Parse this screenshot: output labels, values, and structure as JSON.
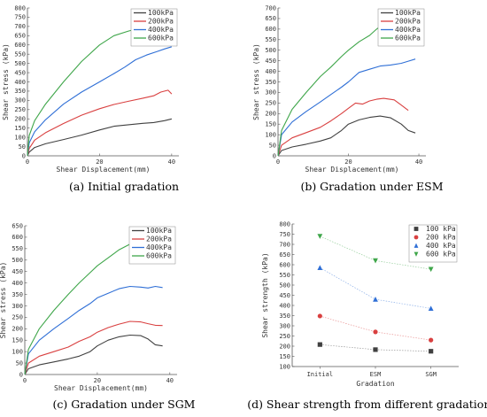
{
  "chart_data": [
    {
      "type": "line",
      "caption": "(a)  Initial gradation",
      "xlabel": "Shear Displacement(mm)",
      "ylabel": "Shear stress (kPa)",
      "xlim": [
        0,
        42
      ],
      "ylim": [
        0,
        800
      ],
      "xticks": [
        0,
        20,
        40
      ],
      "yticks": [
        0,
        50,
        100,
        150,
        200,
        250,
        300,
        350,
        400,
        450,
        500,
        550,
        600,
        650,
        700,
        750,
        800
      ],
      "legend_position": "top-right",
      "series": [
        {
          "name": "100kPa",
          "color": "#404040",
          "points": [
            [
              0,
              0
            ],
            [
              0.5,
              20
            ],
            [
              2,
              45
            ],
            [
              5,
              65
            ],
            [
              10,
              88
            ],
            [
              15,
              112
            ],
            [
              20,
              140
            ],
            [
              24,
              160
            ],
            [
              28,
              168
            ],
            [
              32,
              176
            ],
            [
              35,
              180
            ],
            [
              38,
              190
            ],
            [
              40,
              200
            ]
          ]
        },
        {
          "name": "200kPa",
          "color": "#d94040",
          "points": [
            [
              0,
              0
            ],
            [
              0.5,
              40
            ],
            [
              2,
              85
            ],
            [
              5,
              125
            ],
            [
              10,
              175
            ],
            [
              15,
              220
            ],
            [
              20,
              255
            ],
            [
              24,
              278
            ],
            [
              28,
              295
            ],
            [
              32,
              312
            ],
            [
              35,
              325
            ],
            [
              37,
              345
            ],
            [
              39,
              355
            ],
            [
              40,
              335
            ]
          ]
        },
        {
          "name": "400kPa",
          "color": "#2f6fd6",
          "points": [
            [
              0,
              0
            ],
            [
              0.5,
              70
            ],
            [
              2,
              130
            ],
            [
              5,
              195
            ],
            [
              10,
              280
            ],
            [
              15,
              345
            ],
            [
              20,
              400
            ],
            [
              24,
              445
            ],
            [
              27,
              480
            ],
            [
              30,
              520
            ],
            [
              33,
              545
            ],
            [
              36,
              565
            ],
            [
              38,
              578
            ],
            [
              40,
              590
            ]
          ]
        },
        {
          "name": "600kPa",
          "color": "#3fa64a",
          "points": [
            [
              0,
              0
            ],
            [
              0.5,
              110
            ],
            [
              2,
              190
            ],
            [
              5,
              280
            ],
            [
              10,
              400
            ],
            [
              15,
              510
            ],
            [
              20,
              600
            ],
            [
              24,
              650
            ],
            [
              28,
              675
            ],
            [
              31,
              690
            ],
            [
              34,
              720
            ],
            [
              36,
              740
            ],
            [
              38,
              750
            ],
            [
              40,
              765
            ]
          ]
        }
      ]
    },
    {
      "type": "line",
      "caption": "(b)  Gradation under ESM",
      "xlabel": "Shear Displacement(mm)",
      "ylabel": "Shear stress (kPa)",
      "xlim": [
        0,
        42
      ],
      "ylim": [
        0,
        700
      ],
      "xticks": [
        0,
        20,
        40
      ],
      "yticks": [
        0,
        50,
        100,
        150,
        200,
        250,
        300,
        350,
        400,
        450,
        500,
        550,
        600,
        650,
        700
      ],
      "legend_position": "top-right",
      "series": [
        {
          "name": "100kPa",
          "color": "#404040",
          "points": [
            [
              0,
              0
            ],
            [
              1,
              25
            ],
            [
              4,
              42
            ],
            [
              8,
              55
            ],
            [
              12,
              70
            ],
            [
              15,
              85
            ],
            [
              18,
              120
            ],
            [
              20,
              150
            ],
            [
              23,
              170
            ],
            [
              26,
              182
            ],
            [
              29,
              188
            ],
            [
              32,
              180
            ],
            [
              35,
              150
            ],
            [
              37,
              120
            ],
            [
              39,
              108
            ]
          ]
        },
        {
          "name": "200kPa",
          "color": "#d94040",
          "points": [
            [
              0,
              0
            ],
            [
              1,
              50
            ],
            [
              4,
              85
            ],
            [
              8,
              110
            ],
            [
              12,
              135
            ],
            [
              15,
              165
            ],
            [
              18,
              200
            ],
            [
              20,
              225
            ],
            [
              22,
              250
            ],
            [
              24,
              245
            ],
            [
              26,
              260
            ],
            [
              28,
              268
            ],
            [
              30,
              272
            ],
            [
              33,
              265
            ],
            [
              35,
              240
            ],
            [
              37,
              215
            ]
          ]
        },
        {
          "name": "400kPa",
          "color": "#2f6fd6",
          "points": [
            [
              0,
              0
            ],
            [
              1,
              100
            ],
            [
              4,
              160
            ],
            [
              8,
              210
            ],
            [
              12,
              255
            ],
            [
              15,
              290
            ],
            [
              18,
              325
            ],
            [
              20,
              350
            ],
            [
              23,
              395
            ],
            [
              26,
              410
            ],
            [
              29,
              425
            ],
            [
              32,
              430
            ],
            [
              35,
              438
            ],
            [
              37,
              448
            ],
            [
              39,
              458
            ]
          ]
        },
        {
          "name": "600kPa",
          "color": "#3fa64a",
          "points": [
            [
              0,
              0
            ],
            [
              1,
              120
            ],
            [
              4,
              220
            ],
            [
              8,
              300
            ],
            [
              12,
              375
            ],
            [
              15,
              420
            ],
            [
              18,
              470
            ],
            [
              20,
              500
            ],
            [
              23,
              540
            ],
            [
              26,
              570
            ],
            [
              28,
              600
            ],
            [
              30,
              625
            ],
            [
              32,
              615
            ],
            [
              34,
              625
            ],
            [
              36,
              622
            ],
            [
              38,
              625
            ]
          ]
        }
      ]
    },
    {
      "type": "line",
      "caption": "(c)  Gradation under SGM",
      "xlabel": "Shear Displacement(mm)",
      "ylabel": "Shear stress (kPa)",
      "xlim": [
        0,
        42
      ],
      "ylim": [
        0,
        650
      ],
      "xticks": [
        0,
        20,
        40
      ],
      "yticks": [
        0,
        50,
        100,
        150,
        200,
        250,
        300,
        350,
        400,
        450,
        500,
        550,
        600,
        650
      ],
      "legend_position": "top-right",
      "series": [
        {
          "name": "100kPa",
          "color": "#404040",
          "points": [
            [
              0,
              0
            ],
            [
              1,
              25
            ],
            [
              4,
              42
            ],
            [
              8,
              55
            ],
            [
              12,
              68
            ],
            [
              15,
              80
            ],
            [
              18,
              100
            ],
            [
              20,
              125
            ],
            [
              23,
              150
            ],
            [
              26,
              165
            ],
            [
              29,
              172
            ],
            [
              32,
              170
            ],
            [
              34,
              155
            ],
            [
              36,
              130
            ],
            [
              38,
              125
            ]
          ]
        },
        {
          "name": "200kPa",
          "color": "#d94040",
          "points": [
            [
              0,
              0
            ],
            [
              1,
              50
            ],
            [
              4,
              80
            ],
            [
              8,
              100
            ],
            [
              12,
              120
            ],
            [
              15,
              145
            ],
            [
              18,
              165
            ],
            [
              20,
              185
            ],
            [
              23,
              205
            ],
            [
              26,
              220
            ],
            [
              29,
              232
            ],
            [
              32,
              230
            ],
            [
              34,
              222
            ],
            [
              36,
              215
            ],
            [
              38,
              214
            ]
          ]
        },
        {
          "name": "400kPa",
          "color": "#2f6fd6",
          "points": [
            [
              0,
              0
            ],
            [
              1,
              90
            ],
            [
              4,
              150
            ],
            [
              8,
              200
            ],
            [
              12,
              245
            ],
            [
              15,
              280
            ],
            [
              18,
              310
            ],
            [
              20,
              335
            ],
            [
              23,
              355
            ],
            [
              26,
              375
            ],
            [
              29,
              385
            ],
            [
              32,
              382
            ],
            [
              34,
              378
            ],
            [
              36,
              385
            ],
            [
              38,
              380
            ]
          ]
        },
        {
          "name": "600kPa",
          "color": "#3fa64a",
          "points": [
            [
              0,
              0
            ],
            [
              1,
              110
            ],
            [
              4,
              200
            ],
            [
              8,
              280
            ],
            [
              12,
              350
            ],
            [
              15,
              400
            ],
            [
              18,
              445
            ],
            [
              20,
              475
            ],
            [
              23,
              510
            ],
            [
              26,
              545
            ],
            [
              29,
              570
            ],
            [
              32,
              580
            ],
            [
              35,
              585
            ],
            [
              37,
              590
            ],
            [
              40,
              595
            ]
          ]
        }
      ]
    },
    {
      "type": "scatter",
      "caption": "(d)  Shear strength from different gradations",
      "xlabel": "Gradation",
      "ylabel": "Shear strength (kPa)",
      "categories": [
        "Initial",
        "ESM",
        "SGM"
      ],
      "ylim": [
        100,
        800
      ],
      "yticks": [
        100,
        150,
        200,
        250,
        300,
        350,
        400,
        450,
        500,
        550,
        600,
        650,
        700,
        750,
        800
      ],
      "legend_position": "top-right",
      "series": [
        {
          "name": "100 kPa",
          "color": "#404040",
          "marker": "square",
          "values": [
            208,
            183,
            175
          ]
        },
        {
          "name": "200 kPa",
          "color": "#d94040",
          "marker": "circle",
          "values": [
            348,
            270,
            230
          ]
        },
        {
          "name": "400 kPa",
          "color": "#2f6fd6",
          "marker": "triangle-up",
          "values": [
            585,
            430,
            385
          ]
        },
        {
          "name": "600 kPa",
          "color": "#3fa64a",
          "marker": "triangle-down",
          "values": [
            740,
            620,
            578
          ]
        }
      ]
    }
  ]
}
